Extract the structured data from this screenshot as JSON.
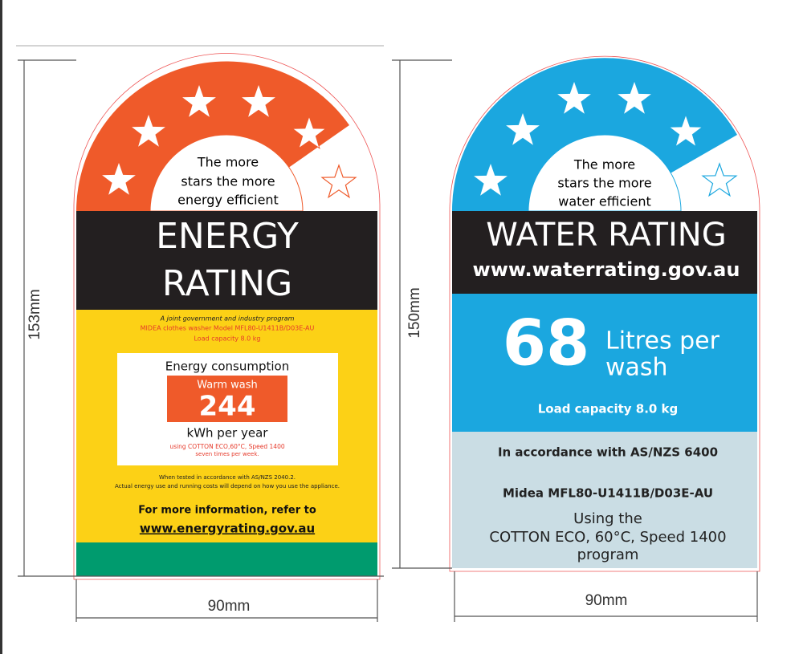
{
  "energy_label": {
    "dimension_height": "153mm",
    "dimension_width": "90mm",
    "stars_caption": [
      "The more",
      "stars the more",
      "energy efficient"
    ],
    "title": [
      "ENERGY",
      "RATING"
    ],
    "program": "A joint government and industry program",
    "model": "MIDEA clothes washer Model MFL80-U1411B/D03E-AU",
    "load": "Load capacity 8.0 kg",
    "consumption_heading": "Energy consumption",
    "wash_type": "Warm wash",
    "value": 244,
    "unit": "kWh per year",
    "test_program": [
      "using COTTON ECO,60°C, Speed 1400",
      "seven times per week."
    ],
    "notes": [
      "When tested in accordance with AS/NZS 2040.2.",
      "Actual energy use and running costs will depend on how you use the appliance."
    ],
    "more_info": "For more information, refer to",
    "website": "www.energyrating.gov.au"
  },
  "water_label": {
    "dimension_height": "150mm",
    "dimension_width": "90mm",
    "stars_caption": [
      "The more",
      "stars the more",
      "water efficient"
    ],
    "title": "WATER RATING",
    "website": "www.waterrating.gov.au",
    "value": 68,
    "unit": [
      "Litres per",
      "wash"
    ],
    "load": "Load capacity 8.0 kg",
    "standard": "In accordance with AS/NZS 6400",
    "model": "Midea MFL80-U1411B/D03E-AU",
    "program": [
      "Using the",
      "COTTON ECO, 60°C, Speed 1400",
      "program"
    ]
  }
}
